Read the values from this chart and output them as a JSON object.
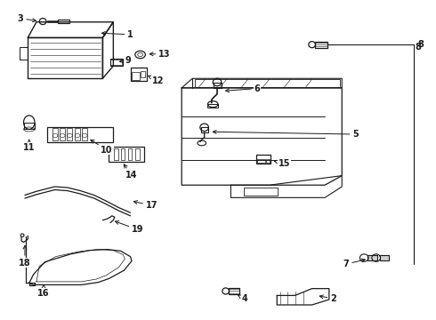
{
  "bg_color": "#ffffff",
  "line_color": "#1a1a1a",
  "labels": [
    [
      1,
      0.295,
      0.895,
      0.22,
      0.9
    ],
    [
      2,
      0.76,
      0.068,
      0.738,
      0.082
    ],
    [
      3,
      0.038,
      0.942,
      0.075,
      0.942
    ],
    [
      4,
      0.555,
      0.068,
      0.538,
      0.082
    ],
    [
      5,
      0.82,
      0.582,
      0.56,
      0.59
    ],
    [
      6,
      0.59,
      0.726,
      0.548,
      0.72
    ],
    [
      7,
      0.79,
      0.175,
      0.845,
      0.178
    ],
    [
      8,
      0.96,
      0.868,
      0.958,
      0.868
    ],
    [
      9,
      0.288,
      0.816,
      0.268,
      0.806
    ],
    [
      10,
      0.238,
      0.528,
      0.2,
      0.553
    ],
    [
      11,
      0.058,
      0.548,
      0.058,
      0.59
    ],
    [
      12,
      0.358,
      0.75,
      0.322,
      0.762
    ],
    [
      13,
      0.368,
      0.836,
      0.333,
      0.836
    ],
    [
      14,
      0.295,
      0.452,
      0.282,
      0.49
    ],
    [
      15,
      0.65,
      0.488,
      0.623,
      0.495
    ],
    [
      16,
      0.092,
      0.082,
      0.092,
      0.108
    ],
    [
      17,
      0.342,
      0.358,
      0.308,
      0.37
    ],
    [
      18,
      0.05,
      0.178,
      0.062,
      0.218
    ],
    [
      19,
      0.308,
      0.282,
      0.252,
      0.3
    ]
  ]
}
